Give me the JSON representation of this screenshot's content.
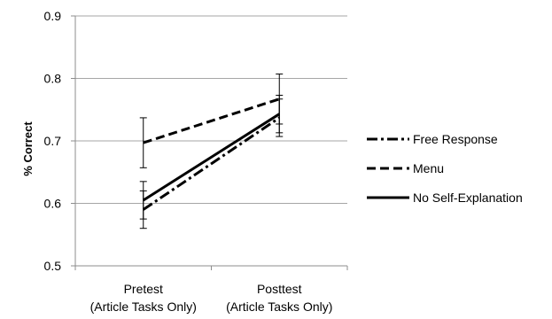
{
  "chart_data": {
    "type": "line",
    "title": "",
    "xlabel": "",
    "ylabel": "% Correct",
    "categories": [
      [
        "Pretest",
        "(Article Tasks Only)"
      ],
      [
        "Posttest",
        "(Article Tasks Only)"
      ]
    ],
    "ylim": [
      0.5,
      0.9
    ],
    "yticks": [
      0.5,
      0.6,
      0.7,
      0.8,
      0.9
    ],
    "ytick_labels": [
      "0.5",
      "0.6",
      "0.7",
      "0.8",
      "0.9"
    ],
    "grid": true,
    "legend_position": "right",
    "series": [
      {
        "name": "Free Response",
        "style": "dashdot",
        "values": [
          0.59,
          0.737
        ],
        "errors": [
          0.03,
          0.03
        ]
      },
      {
        "name": "Menu",
        "style": "dashed",
        "values": [
          0.697,
          0.767
        ],
        "errors": [
          0.04,
          0.04
        ]
      },
      {
        "name": "No Self-Explanation",
        "style": "solid",
        "values": [
          0.605,
          0.743
        ],
        "errors": [
          0.03,
          0.03
        ]
      }
    ],
    "colors": {
      "line": "#000000",
      "grid": "#a6a6a6",
      "axis": "#8c8c8c"
    }
  }
}
